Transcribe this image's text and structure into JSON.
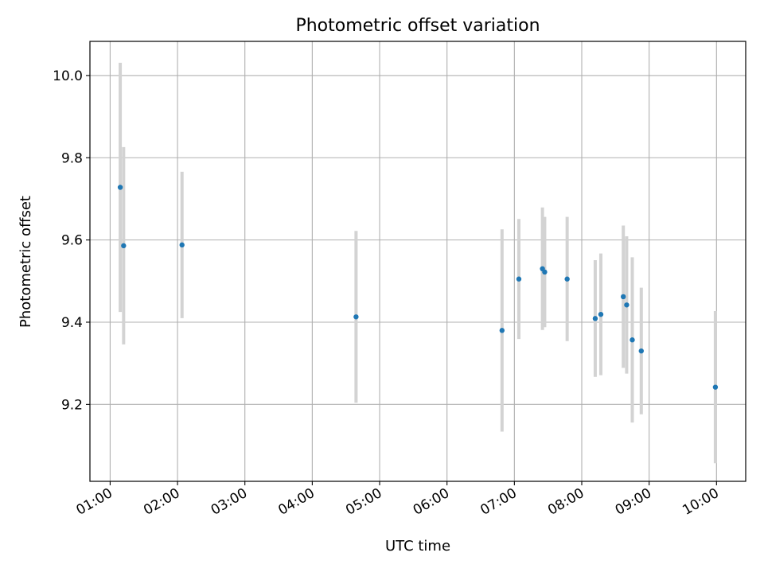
{
  "chart_data": {
    "type": "scatter",
    "title": "Photometric offset variation",
    "xlabel": "UTC time",
    "ylabel": "Photometric offset",
    "x_unit": "time",
    "xlim": [
      "00:42",
      "10:26"
    ],
    "ylim": [
      9.013,
      10.083
    ],
    "x_ticks": [
      "01:00",
      "02:00",
      "03:00",
      "04:00",
      "05:00",
      "06:00",
      "07:00",
      "08:00",
      "09:00",
      "10:00"
    ],
    "y_ticks": [
      9.2,
      9.4,
      9.6,
      9.8,
      10.0
    ],
    "y_tick_labels": [
      "9.2",
      "9.4",
      "9.6",
      "9.8",
      "10.0"
    ],
    "grid": true,
    "legend": "none",
    "marker_color": "#1f77b4",
    "errorbar_color": "#d3d3d3",
    "points": [
      {
        "time": "01:09",
        "y": 9.728,
        "yerr": 0.303
      },
      {
        "time": "01:12",
        "y": 9.586,
        "yerr": 0.24
      },
      {
        "time": "02:04",
        "y": 9.588,
        "yerr": 0.178
      },
      {
        "time": "04:39",
        "y": 9.413,
        "yerr": 0.209
      },
      {
        "time": "06:49",
        "y": 9.38,
        "yerr": 0.246
      },
      {
        "time": "07:04",
        "y": 9.505,
        "yerr": 0.146
      },
      {
        "time": "07:25",
        "y": 9.53,
        "yerr": 0.149
      },
      {
        "time": "07:27",
        "y": 9.522,
        "yerr": 0.134
      },
      {
        "time": "07:47",
        "y": 9.505,
        "yerr": 0.151
      },
      {
        "time": "08:12",
        "y": 9.409,
        "yerr": 0.142
      },
      {
        "time": "08:17",
        "y": 9.419,
        "yerr": 0.148
      },
      {
        "time": "08:37",
        "y": 9.462,
        "yerr": 0.173
      },
      {
        "time": "08:40",
        "y": 9.442,
        "yerr": 0.167
      },
      {
        "time": "08:45",
        "y": 9.357,
        "yerr": 0.201
      },
      {
        "time": "08:53",
        "y": 9.33,
        "yerr": 0.154
      },
      {
        "time": "09:59",
        "y": 9.242,
        "yerr": 0.185
      }
    ]
  }
}
